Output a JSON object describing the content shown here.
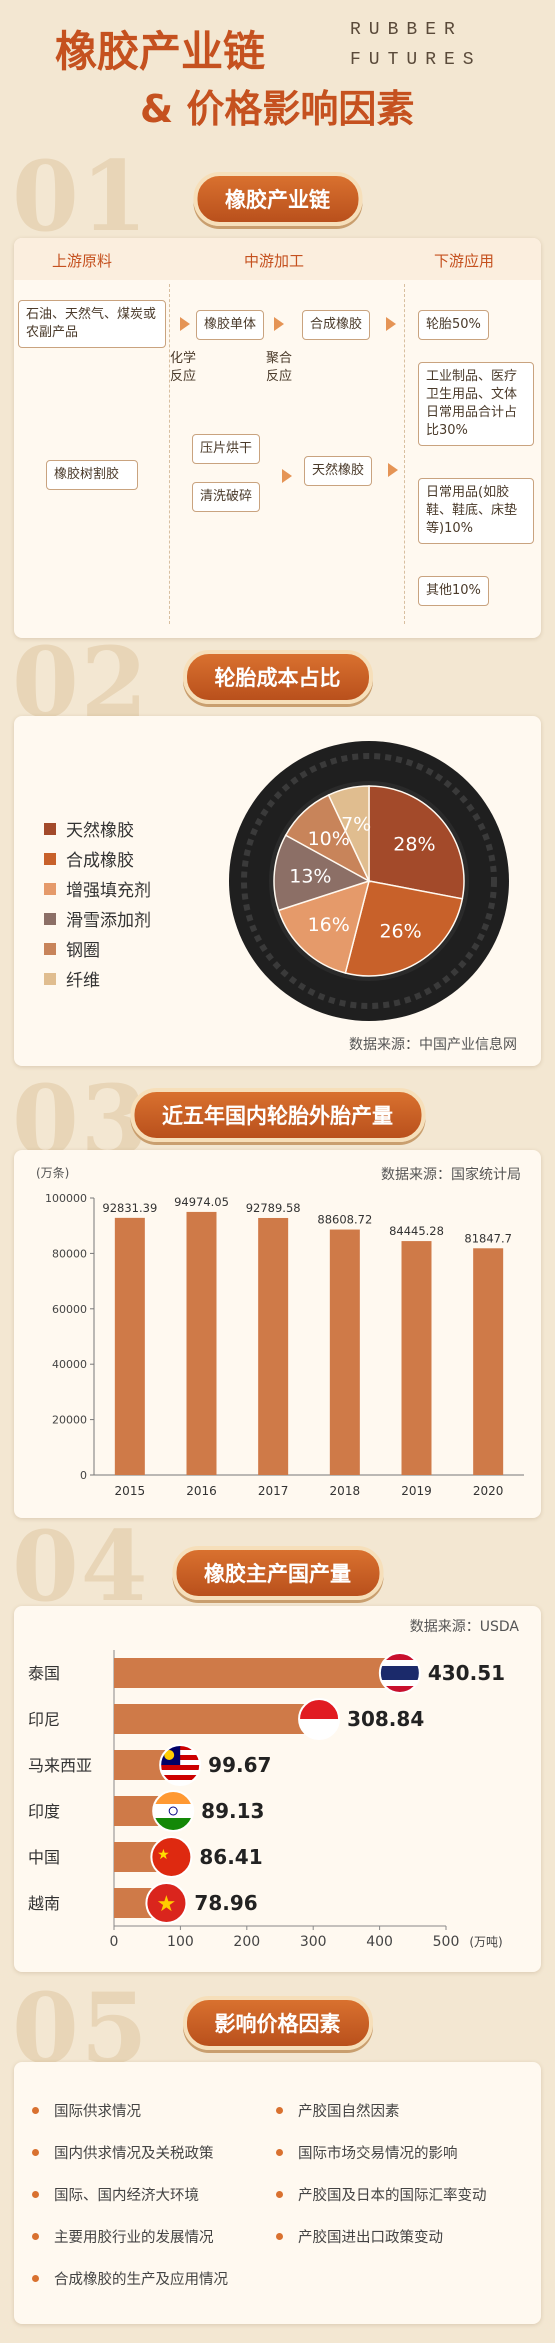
{
  "header": {
    "title_line1": "橡胶产业链",
    "title_line2": "& 价格影响因素",
    "english_line1": "RUBBER",
    "english_line2": "FUTURES"
  },
  "sections": {
    "s1": {
      "num": "01",
      "title": "橡胶产业链"
    },
    "s2": {
      "num": "02",
      "title": "轮胎成本占比"
    },
    "s3": {
      "num": "03",
      "title": "近五年国内轮胎外胎产量"
    },
    "s4": {
      "num": "04",
      "title": "橡胶主产国产量"
    },
    "s5": {
      "num": "05",
      "title": "影响价格因素"
    }
  },
  "chain": {
    "col_upstream": "上游原料",
    "col_midstream": "中游加工",
    "col_downstream": "下游应用",
    "raw1": "石油、天然气、煤炭或农副产品",
    "raw2": "橡胶树割胶",
    "monomer": "橡胶单体",
    "synthetic": "合成橡胶",
    "chem_label_1": "化学",
    "chem_label_2": "反应",
    "poly_label_1": "聚合",
    "poly_label_2": "反应",
    "press": "压片烘干",
    "wash": "清洗破碎",
    "natural": "天然橡胶",
    "app1": "轮胎50%",
    "app2": "工业制品、医疗卫生用品、文体日常用品合计占比30%",
    "app3": "日常用品(如胶鞋、鞋底、床垫等)10%",
    "app4": "其他10%"
  },
  "colors": {
    "accent": "#c5511f",
    "bar": "#cf7a48",
    "natural_rubber": "#a34a2a",
    "synthetic_rubber": "#c8612a",
    "reinforcing_filler": "#e59a6a",
    "snow_additive": "#8c6f66",
    "steel_ring": "#c8845a",
    "fiber": "#e0bd8f"
  },
  "sources": {
    "pie": "数据来源：中国产业信息网",
    "tire": "数据来源：国家统计局",
    "country": "数据来源：USDA"
  },
  "factors": {
    "left": [
      "国际供求情况",
      "国内供求情况及关税政策",
      "国际、国内经济大环境",
      "主要用胶行业的发展情况",
      "合成橡胶的生产及应用情况"
    ],
    "right": [
      "产胶国自然因素",
      "国际市场交易情况的影响",
      "产胶国及日本的国际汇率变动",
      "产胶国进出口政策变动"
    ]
  },
  "chart_data": [
    {
      "type": "pie",
      "title": "轮胎成本占比",
      "labels": [
        "天然橡胶",
        "合成橡胶",
        "增强填充剂",
        "滑雪添加剂",
        "钢圈",
        "纤维"
      ],
      "values": [
        28,
        26,
        16,
        13,
        10,
        7
      ],
      "legend_position": "left"
    },
    {
      "type": "bar",
      "title": "近五年国内轮胎外胎产量",
      "ylabel": "(万条)",
      "categories": [
        "2015",
        "2016",
        "2017",
        "2018",
        "2019",
        "2020"
      ],
      "values": [
        92831.39,
        94974.05,
        92789.58,
        88608.72,
        84445.28,
        81847.7
      ],
      "value_labels": [
        "92831.39",
        "94974.05",
        "92789.58",
        "88608.72",
        "84445.28",
        "81847.7"
      ],
      "ylim": [
        0,
        100000
      ],
      "yticks": [
        "100000",
        "80000",
        "60000",
        "40000",
        "20000",
        "0"
      ],
      "ytick_values": [
        100000,
        80000,
        60000,
        40000,
        20000,
        0
      ],
      "grid": false
    },
    {
      "type": "bar",
      "orientation": "horizontal",
      "title": "橡胶主产国产量",
      "xlabel": "(万吨)",
      "categories": [
        "泰国",
        "印尼",
        "马来西亚",
        "印度",
        "中国",
        "越南"
      ],
      "values": [
        430.51,
        308.84,
        99.67,
        89.13,
        86.41,
        78.96
      ],
      "value_labels": [
        "430.51",
        "308.84",
        "99.67",
        "89.13",
        "86.41",
        "78.96"
      ],
      "flag_icons": [
        "thailand-flag-icon",
        "indonesia-flag-icon",
        "malaysia-flag-icon",
        "india-flag-icon",
        "china-flag-icon",
        "vietnam-flag-icon"
      ],
      "xlim": [
        0,
        500
      ],
      "xticks": [
        "0",
        "100",
        "200",
        "300",
        "400",
        "500"
      ],
      "xtick_values": [
        0,
        100,
        200,
        300,
        400,
        500
      ],
      "grid": false
    }
  ]
}
